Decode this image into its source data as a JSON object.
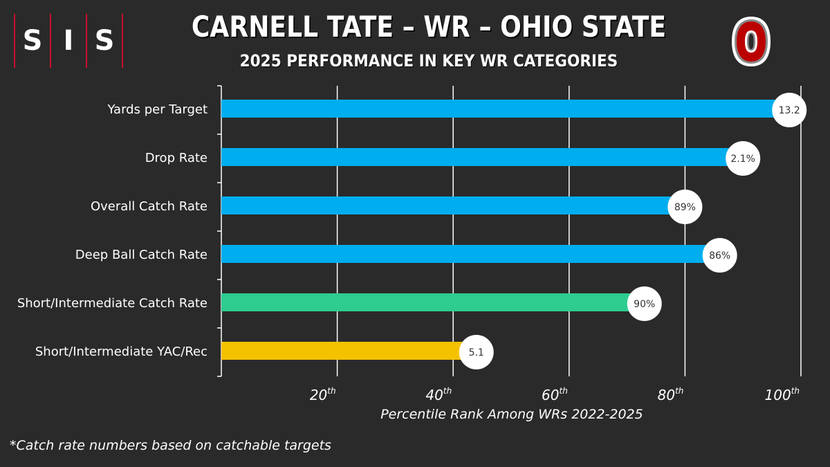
{
  "brand": {
    "letters": [
      "S",
      "I",
      "S"
    ]
  },
  "header": {
    "title": "CARNELL TATE – WR – OHIO STATE",
    "subtitle": "2025 PERFORMANCE IN KEY WR CATEGORIES"
  },
  "colors": {
    "background": "#2a2a2a",
    "blue": "#00aeef",
    "green": "#2ecc8f",
    "yellow": "#f5c200",
    "osu_red": "#bb0000"
  },
  "footnote": "*Catch rate numbers based on catchable targets",
  "chart_data": {
    "type": "bar",
    "orientation": "horizontal",
    "title": "CARNELL TATE – WR – OHIO STATE",
    "subtitle": "2025 PERFORMANCE IN KEY WR CATEGORIES",
    "xlabel": "Percentile Rank Among WRs 2022-2025",
    "ylabel": "",
    "xlim": [
      0,
      100
    ],
    "x_ticks": [
      {
        "value": 20,
        "num": "20",
        "suffix": "th"
      },
      {
        "value": 40,
        "num": "40",
        "suffix": "th"
      },
      {
        "value": 60,
        "num": "60",
        "suffix": "th"
      },
      {
        "value": 80,
        "num": "80",
        "suffix": "th"
      },
      {
        "value": 100,
        "num": "100",
        "suffix": "th"
      }
    ],
    "grid": true,
    "categories": [
      "Yards per Target",
      "Drop Rate",
      "Overall Catch Rate",
      "Deep Ball Catch Rate",
      "Short/Intermediate Catch Rate",
      "Short/Intermediate YAC/Rec"
    ],
    "values": [
      98,
      90,
      80,
      86,
      73,
      44
    ],
    "data_labels": [
      "13.2",
      "2.1%",
      "89%",
      "86%",
      "90%",
      "5.1"
    ],
    "bar_colors": [
      "#00aeef",
      "#00aeef",
      "#00aeef",
      "#00aeef",
      "#2ecc8f",
      "#f5c200"
    ]
  }
}
